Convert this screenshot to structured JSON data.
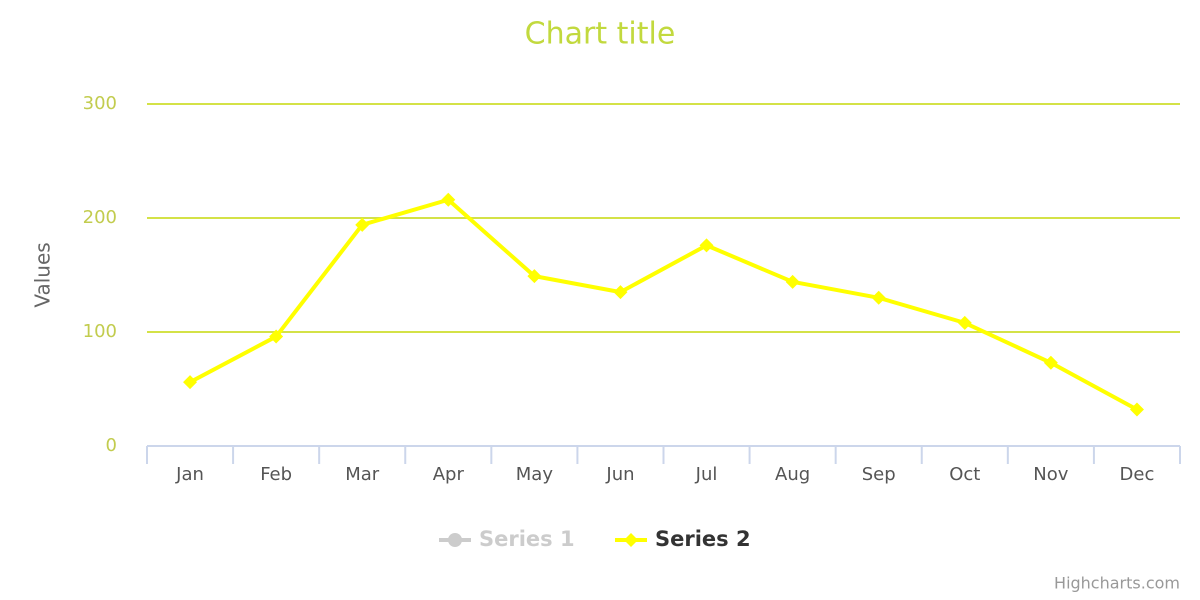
{
  "chart_data": {
    "type": "line",
    "title": "Chart title",
    "y_label": "Values",
    "categories": [
      "Jan",
      "Feb",
      "Mar",
      "Apr",
      "May",
      "Jun",
      "Jul",
      "Aug",
      "Sep",
      "Oct",
      "Nov",
      "Dec"
    ],
    "series": [
      {
        "name": "Series 1",
        "color": "#cccccc",
        "visible": false
      },
      {
        "name": "Series 2",
        "color": "#ffff00",
        "visible": true,
        "values": [
          56,
          96,
          194,
          216,
          149,
          135,
          176,
          144,
          130,
          108,
          73,
          32
        ]
      }
    ],
    "ylim": [
      0,
      300
    ],
    "yticks": [
      0,
      100,
      200,
      300
    ],
    "grid": true,
    "credits": "Highcharts.com"
  }
}
